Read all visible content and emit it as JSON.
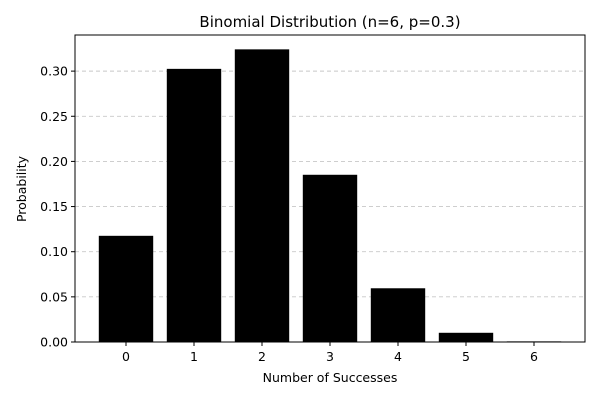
{
  "chart_data": {
    "type": "bar",
    "title": "Binomial Distribution (n=6, p=0.3)",
    "xlabel": "Number of Successes",
    "ylabel": "Probability",
    "categories": [
      "0",
      "1",
      "2",
      "3",
      "4",
      "5",
      "6"
    ],
    "values": [
      0.1176,
      0.3025,
      0.3241,
      0.1852,
      0.0595,
      0.0102,
      0.0007
    ],
    "ylim": [
      0,
      0.34
    ],
    "yticks": [
      "0.00",
      "0.05",
      "0.10",
      "0.15",
      "0.20",
      "0.25",
      "0.30"
    ],
    "grid": "y-axis dashed",
    "bar_color": "#000000",
    "grid_color": "#c8c8c8"
  }
}
